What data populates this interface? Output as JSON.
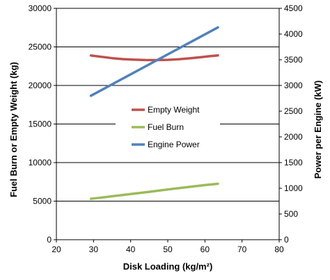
{
  "chart_data": {
    "type": "line",
    "xlabel": "Disk Loading (kg/m²)",
    "ylabel_left": "Fuel Burn or Empty Weight (kg)",
    "ylabel_right": "Power per Engine (kW)",
    "xlim": [
      20,
      80
    ],
    "ylim_left": [
      0,
      30000
    ],
    "ylim_right": [
      0,
      4500
    ],
    "x_ticks": [
      "20",
      "30",
      "40",
      "50",
      "60",
      "70",
      "80"
    ],
    "y_left_ticks": [
      "0",
      "5000",
      "10000",
      "15000",
      "20000",
      "25000",
      "30000"
    ],
    "y_right_ticks": [
      "0",
      "500",
      "1000",
      "1500",
      "2000",
      "2500",
      "3000",
      "3500",
      "4000",
      "4500"
    ],
    "grid": "horizontal",
    "legend_position": "center",
    "series": [
      {
        "name": "Empty Weight",
        "axis": "left",
        "color": "#c0504d",
        "x": [
          29.3,
          32,
          35,
          38,
          41,
          44,
          47,
          50,
          53,
          56,
          59,
          61,
          63.5
        ],
        "y": [
          23880,
          23720,
          23540,
          23410,
          23340,
          23300,
          23290,
          23320,
          23400,
          23520,
          23670,
          23780,
          23900
        ]
      },
      {
        "name": "Fuel Burn",
        "axis": "left",
        "color": "#9bbb59",
        "x": [
          29.3,
          35,
          40,
          45,
          50,
          55,
          60,
          63.5
        ],
        "y": [
          5300,
          5630,
          5920,
          6210,
          6510,
          6800,
          7080,
          7250
        ]
      },
      {
        "name": "Engine Power",
        "axis": "right",
        "color": "#4f81bd",
        "x": [
          29.3,
          63.5
        ],
        "y": [
          2800,
          4130
        ]
      }
    ]
  }
}
